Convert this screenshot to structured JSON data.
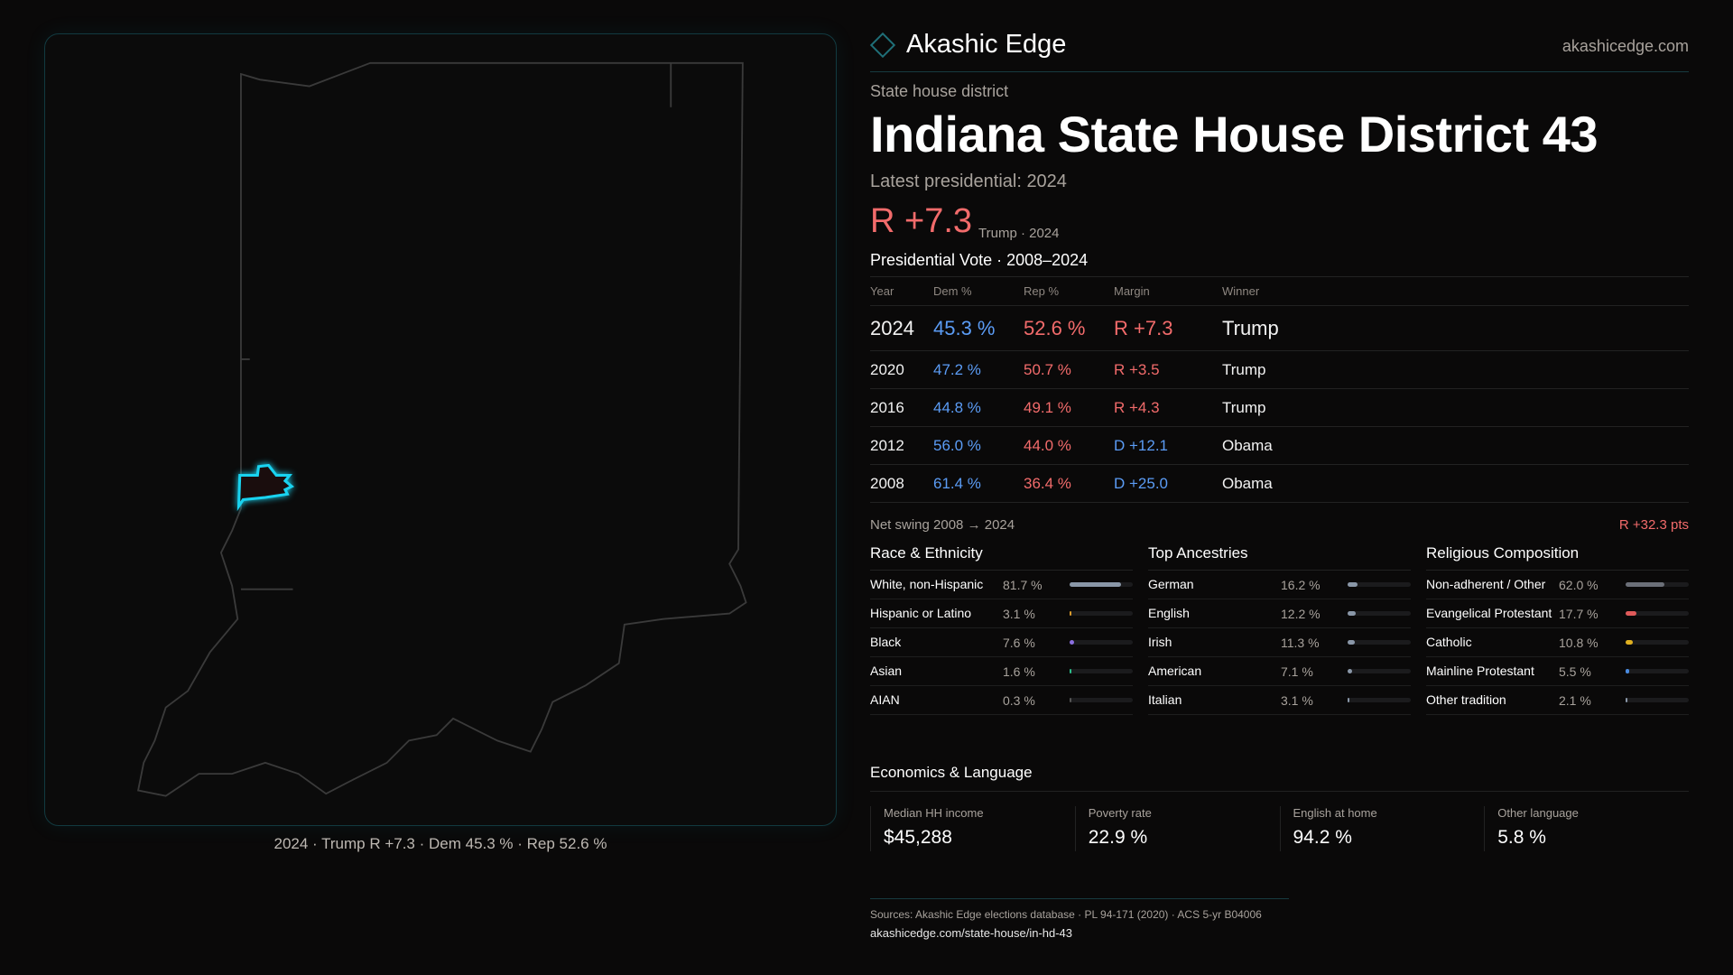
{
  "brand": {
    "name": "Akashic Edge",
    "site": "akashicedge.com",
    "logo_icon": "diamond-icon"
  },
  "map": {
    "caption": "2024 · Trump R +7.3 · Dem 45.3 % · Rep 52.6 %",
    "highlight_color": "#19d3f0"
  },
  "header": {
    "kind": "State house district",
    "title": "Indiana State House District 43",
    "latest": "Latest presidential: 2024",
    "margin": "R +7.3",
    "margin_sub": "Trump · 2024"
  },
  "colors": {
    "dem": "#5b9cf5",
    "rep": "#f26b6b",
    "background": "#0a0909"
  },
  "presidential": {
    "heading": "Presidential Vote · 2008–2024",
    "columns": [
      "Year",
      "Dem %",
      "Rep %",
      "Margin",
      "Winner"
    ],
    "rows": [
      {
        "year": "2024",
        "dem": "45.3 %",
        "rep": "52.6 %",
        "margin": "R +7.3",
        "party": "rep",
        "winner": "Trump"
      },
      {
        "year": "2020",
        "dem": "47.2 %",
        "rep": "50.7 %",
        "margin": "R +3.5",
        "party": "rep",
        "winner": "Trump"
      },
      {
        "year": "2016",
        "dem": "44.8 %",
        "rep": "49.1 %",
        "margin": "R +4.3",
        "party": "rep",
        "winner": "Trump"
      },
      {
        "year": "2012",
        "dem": "56.0 %",
        "rep": "44.0 %",
        "margin": "D +12.1",
        "party": "dem",
        "winner": "Obama"
      },
      {
        "year": "2008",
        "dem": "61.4 %",
        "rep": "36.4 %",
        "margin": "D +25.0",
        "party": "dem",
        "winner": "Obama"
      }
    ],
    "swing_label": "Net swing 2008 → 2024",
    "swing_value": "R +32.3 pts"
  },
  "demographics": [
    {
      "title": "Race & Ethnicity",
      "items": [
        {
          "label": "White, non-Hispanic",
          "value": "81.7 %",
          "pct": 81.7,
          "color": "#8a97a8"
        },
        {
          "label": "Hispanic or Latino",
          "value": "3.1 %",
          "pct": 3.1,
          "color": "#d99a2b"
        },
        {
          "label": "Black",
          "value": "7.6 %",
          "pct": 7.6,
          "color": "#8b6fe0"
        },
        {
          "label": "Asian",
          "value": "1.6 %",
          "pct": 1.6,
          "color": "#2bbf8a"
        },
        {
          "label": "AIAN",
          "value": "0.3 %",
          "pct": 0.3,
          "color": "#555"
        }
      ]
    },
    {
      "title": "Top Ancestries",
      "items": [
        {
          "label": "German",
          "value": "16.2 %",
          "pct": 16.2,
          "color": "#8a97a8"
        },
        {
          "label": "English",
          "value": "12.2 %",
          "pct": 12.2,
          "color": "#8a97a8"
        },
        {
          "label": "Irish",
          "value": "11.3 %",
          "pct": 11.3,
          "color": "#8a97a8"
        },
        {
          "label": "American",
          "value": "7.1 %",
          "pct": 7.1,
          "color": "#8a97a8"
        },
        {
          "label": "Italian",
          "value": "3.1 %",
          "pct": 3.1,
          "color": "#8a97a8"
        }
      ]
    },
    {
      "title": "Religious Composition",
      "items": [
        {
          "label": "Non-adherent / Other",
          "value": "62.0 %",
          "pct": 62.0,
          "color": "#6b6f78"
        },
        {
          "label": "Evangelical Protestant",
          "value": "17.7 %",
          "pct": 17.7,
          "color": "#e05a5a"
        },
        {
          "label": "Catholic",
          "value": "10.8 %",
          "pct": 10.8,
          "color": "#e0b020"
        },
        {
          "label": "Mainline Protestant",
          "value": "5.5 %",
          "pct": 5.5,
          "color": "#4a8be0"
        },
        {
          "label": "Other tradition",
          "value": "2.1 %",
          "pct": 2.1,
          "color": "#8a97a8"
        }
      ]
    }
  ],
  "economics": {
    "heading": "Economics & Language",
    "items": [
      {
        "label": "Median HH income",
        "value": "$45,288"
      },
      {
        "label": "Poverty rate",
        "value": "22.9 %"
      },
      {
        "label": "English at home",
        "value": "94.2 %"
      },
      {
        "label": "Other language",
        "value": "5.8 %"
      }
    ]
  },
  "footer": {
    "sources": "Sources: Akashic Edge elections database · PL 94-171 (2020) · ACS 5-yr B04006",
    "url": "akashicedge.com/state-house/in-hd-43"
  }
}
